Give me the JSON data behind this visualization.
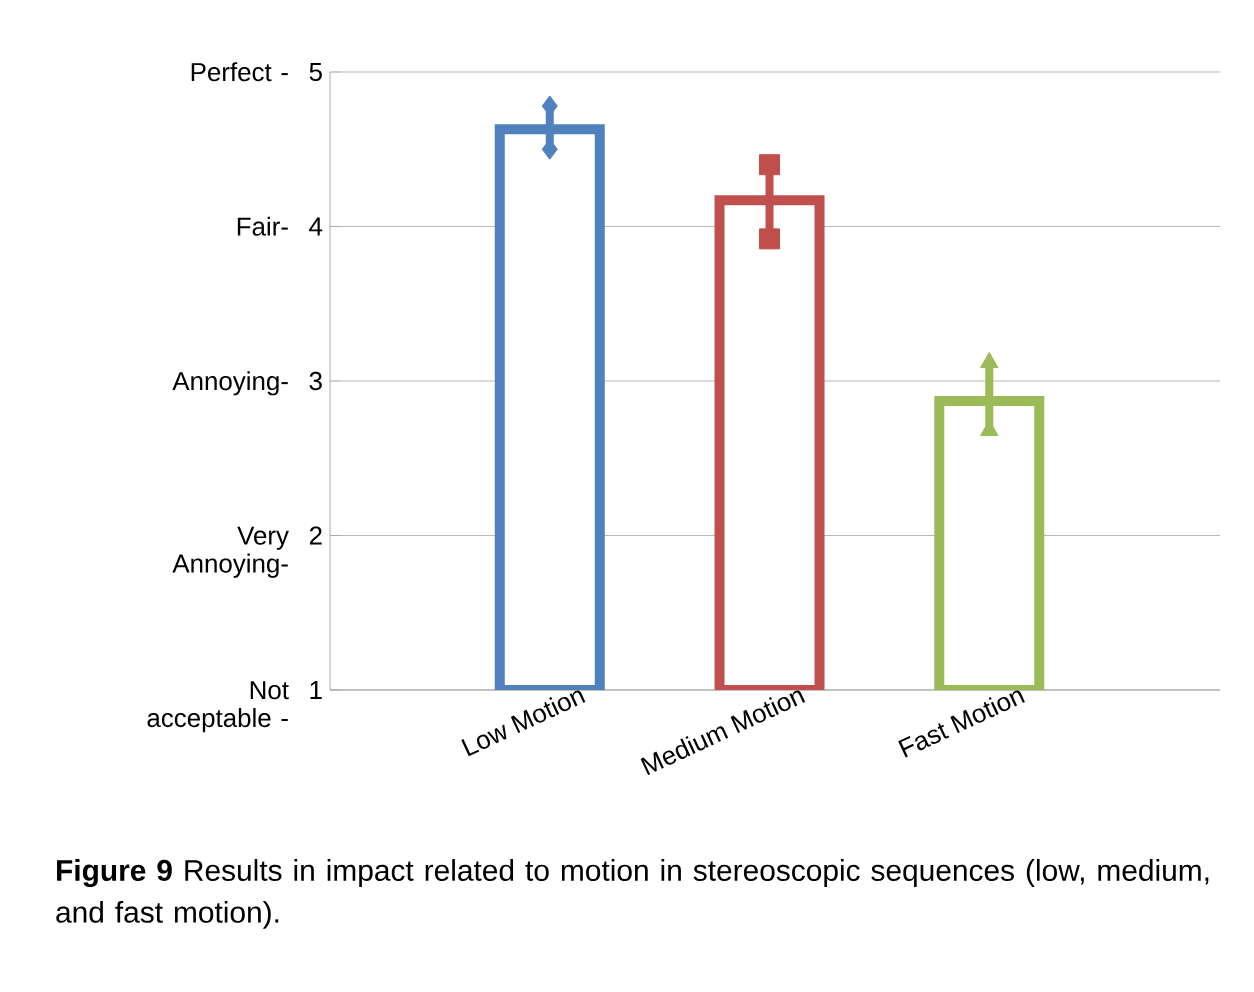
{
  "chart_data": {
    "type": "bar",
    "categories": [
      "Low Motion",
      "Medium Motion",
      "Fast Motion"
    ],
    "series": [
      {
        "color": "#4f81bd",
        "values": [
          4.63,
          null,
          null
        ]
      },
      {
        "color": "#c0504d",
        "values": [
          null,
          4.17,
          null
        ]
      },
      {
        "color": "#9bbb59",
        "values": [
          null,
          null,
          2.87
        ]
      },
      {
        "type": "line",
        "color": "#4f81bd",
        "x": [
          "Low Motion",
          "Low Motion"
        ],
        "values": [
          4.5,
          4.78
        ],
        "marker": "diamond"
      },
      {
        "type": "line",
        "color": "#c0504d",
        "x": [
          "Medium Motion",
          "Medium Motion"
        ],
        "values": [
          3.92,
          4.4
        ],
        "marker": "square"
      },
      {
        "type": "line",
        "color": "#9bbb59",
        "x": [
          "Fast Motion",
          "Fast Motion"
        ],
        "values": [
          2.68,
          3.12
        ],
        "marker": "triangle"
      }
    ],
    "ylim": [
      1,
      5
    ],
    "yticks": [
      1,
      2,
      3,
      4,
      5
    ],
    "grid": "y",
    "annotations": [
      "Not acceptable -",
      "Very Annoying-",
      "Annoying-",
      "Fair-",
      "Perfect -",
      "**Figure 9** Results in impact related to motion in stereoscopic sequences (low, medium, and fast motion)."
    ]
  }
}
